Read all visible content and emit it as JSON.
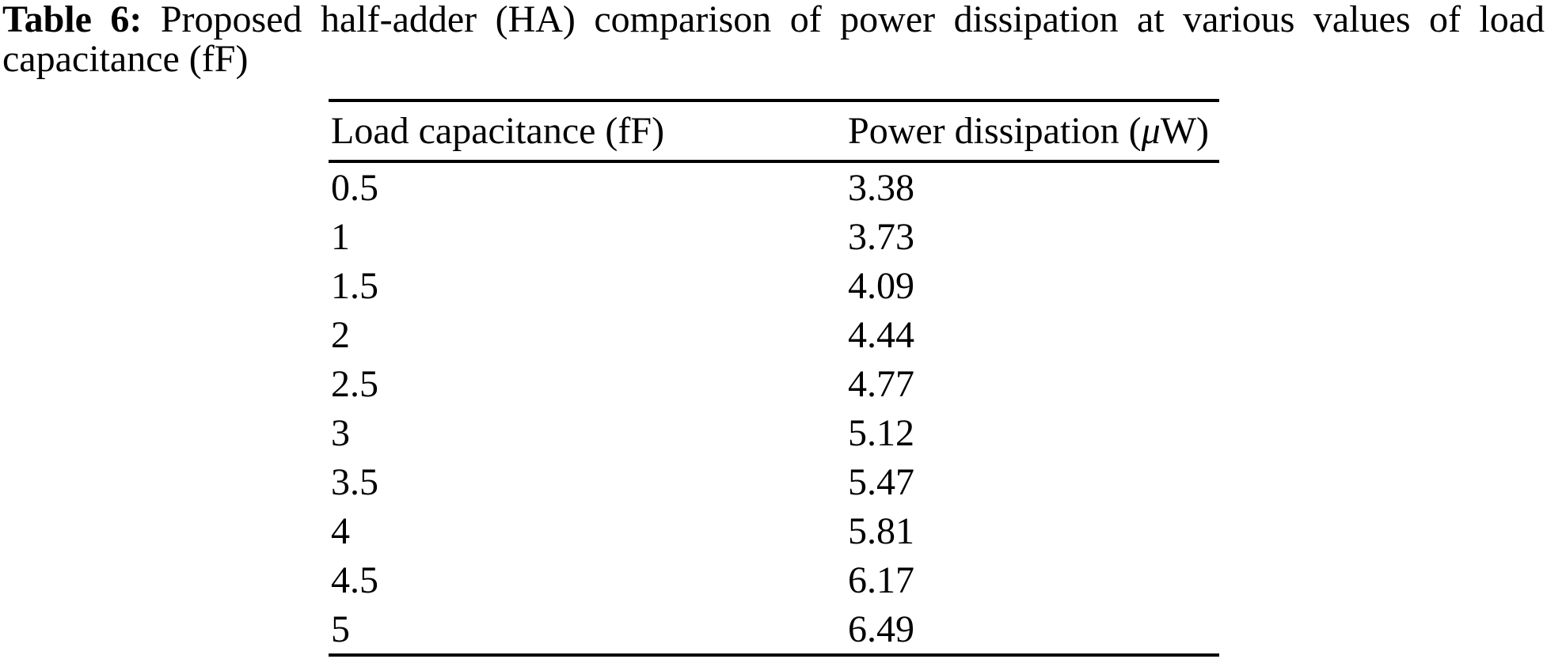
{
  "caption": {
    "label": "Table 6:",
    "line1_rest": "Proposed half-adder (HA) comparison of power dissipation at various values of load",
    "line2": "capacitance (fF)"
  },
  "table": {
    "col1_header": "Load capacitance (fF)",
    "col2_header": {
      "prefix": "Power dissipation (",
      "mu": "μ",
      "suffix": "W)"
    },
    "rows": [
      {
        "load_capacitance": "0.5",
        "power_dissipation": "3.38"
      },
      {
        "load_capacitance": "1",
        "power_dissipation": "3.73"
      },
      {
        "load_capacitance": "1.5",
        "power_dissipation": "4.09"
      },
      {
        "load_capacitance": "2",
        "power_dissipation": "4.44"
      },
      {
        "load_capacitance": "2.5",
        "power_dissipation": "4.77"
      },
      {
        "load_capacitance": "3",
        "power_dissipation": "5.12"
      },
      {
        "load_capacitance": "3.5",
        "power_dissipation": "5.47"
      },
      {
        "load_capacitance": "4",
        "power_dissipation": "5.81"
      },
      {
        "load_capacitance": "4.5",
        "power_dissipation": "6.17"
      },
      {
        "load_capacitance": "5",
        "power_dissipation": "6.49"
      }
    ]
  },
  "colors": {
    "text": "#000000",
    "background": "#ffffff",
    "rule": "#000000"
  }
}
